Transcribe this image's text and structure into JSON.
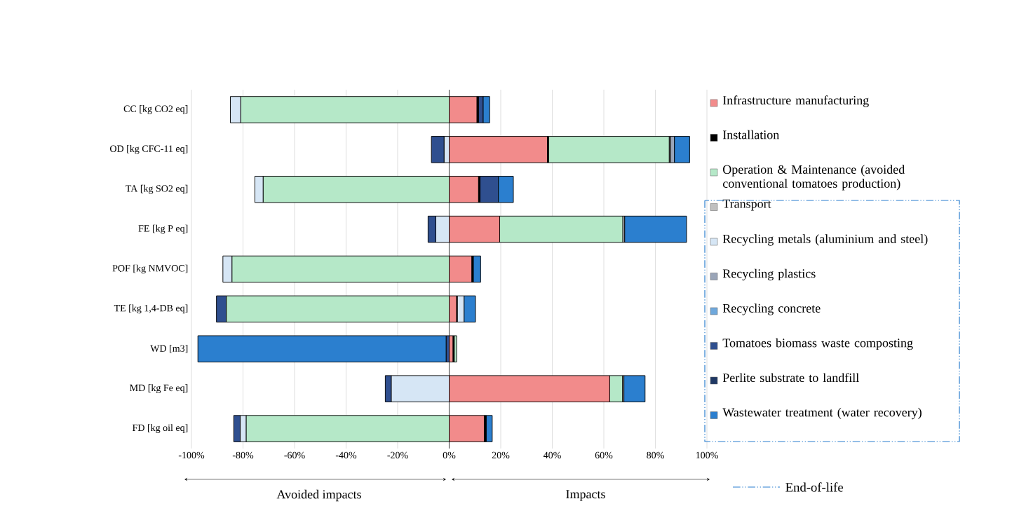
{
  "chart_data": {
    "type": "bar",
    "orientation": "horizontal",
    "stacked": true,
    "categories": [
      "CC [kg CO2 eq]",
      "OD [kg CFC-11 eq]",
      "TA [kg SO2 eq]",
      "FE [kg P eq]",
      "POF [kg NMVOC]",
      "TE [kg 1,4-DB eq]",
      "WD [m3]",
      "MD [kg Fe eq]",
      "FD [kg oil eq]"
    ],
    "series": [
      {
        "name": "Infrastructure manufacturing",
        "color": "#f28b8b",
        "values": [
          10.8,
          38.1,
          11.4,
          19.6,
          8.8,
          2.9,
          1.5,
          62.3,
          13.6
        ]
      },
      {
        "name": "Installation",
        "color": "#000000",
        "values": [
          0.6,
          0.5,
          0.6,
          null,
          0.6,
          0.3,
          0.5,
          null,
          0.8
        ]
      },
      {
        "name": "Operation & Maintenance (avoided conventional tomatoes production)",
        "color": "#b5e8c8",
        "values": [
          -80.9,
          46.8,
          -72.2,
          47.8,
          -84.3,
          -86.5,
          0.9,
          5.0,
          -78.8
        ]
      },
      {
        "name": "Transport",
        "color": "#c0c0c0",
        "values": [
          null,
          0.5,
          null,
          0.7,
          null,
          null,
          null,
          0.5,
          null
        ]
      },
      {
        "name": "Recycling metals (aluminium and steel)",
        "color": "#d6e6f5",
        "values": [
          -4.0,
          -2.0,
          -3.2,
          -5.2,
          -3.5,
          2.6,
          null,
          -22.5,
          -2.3
        ]
      },
      {
        "name": "Recycling plastics",
        "color": "#9aa5b8",
        "values": [
          null,
          1.5,
          null,
          null,
          null,
          null,
          null,
          null,
          null
        ]
      },
      {
        "name": "Recycling concrete",
        "color": "#6fa8dc",
        "values": [
          null,
          null,
          null,
          null,
          null,
          null,
          null,
          null,
          null
        ]
      },
      {
        "name": "Tomatoes biomass waste composting",
        "color": "#2f4f8f",
        "values": [
          1.8,
          -4.9,
          7.1,
          -3.0,
          null,
          -3.8,
          -1.2,
          -2.3,
          -2.5
        ]
      },
      {
        "name": "Perlite substrate to landfill",
        "color": "#1f3864",
        "values": [
          null,
          null,
          null,
          null,
          null,
          null,
          null,
          null,
          null
        ]
      },
      {
        "name": "Wastewater treatment (water recovery)",
        "color": "#2b7fcf",
        "values": [
          2.5,
          5.9,
          5.8,
          24.0,
          2.8,
          4.4,
          -96.3,
          8.2,
          2.3
        ]
      }
    ],
    "xlim": [
      -100,
      100
    ],
    "xticks": [
      {
        "value": -100,
        "label": "-100%"
      },
      {
        "value": -80,
        "label": "-80%"
      },
      {
        "value": -60,
        "label": "-60%"
      },
      {
        "value": -40,
        "label": "-40%"
      },
      {
        "value": -20,
        "label": "-20%"
      },
      {
        "value": 0,
        "label": "0%"
      },
      {
        "value": 20,
        "label": "20%"
      },
      {
        "value": 40,
        "label": "40%"
      },
      {
        "value": 60,
        "label": "60%"
      },
      {
        "value": 80,
        "label": "80%"
      },
      {
        "value": 100,
        "label": "100%"
      }
    ],
    "grid": "x",
    "legend": "right",
    "annotations": [
      "Avoided impacts",
      "Impacts",
      "End-of-life"
    ]
  }
}
